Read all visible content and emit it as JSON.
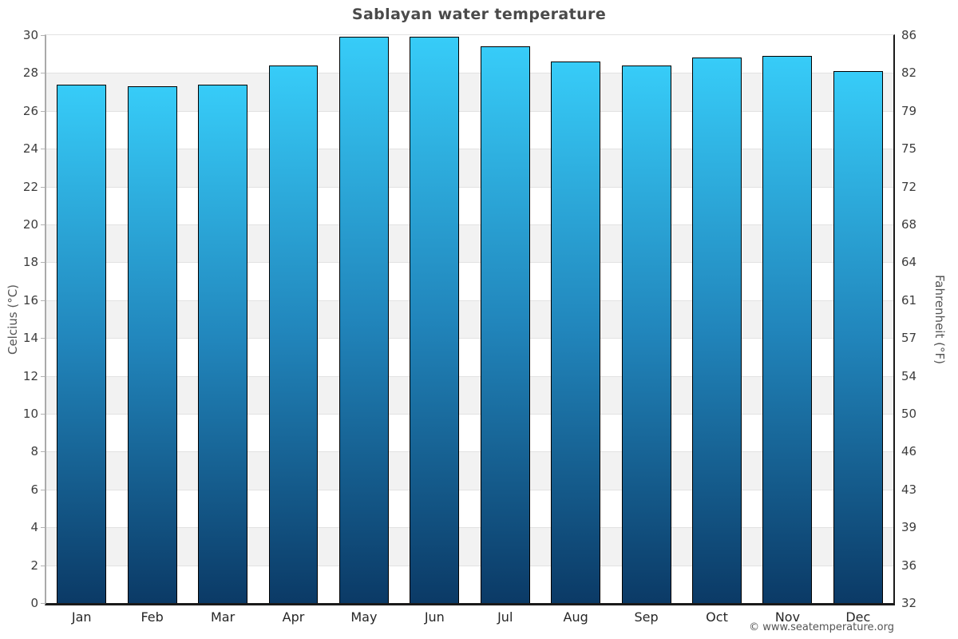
{
  "title": "Sablayan water temperature",
  "copyright": "© www.seatemperature.org",
  "chart_data": {
    "type": "bar",
    "title": "Sablayan water temperature",
    "categories": [
      "Jan",
      "Feb",
      "Mar",
      "Apr",
      "May",
      "Jun",
      "Jul",
      "Aug",
      "Sep",
      "Oct",
      "Nov",
      "Dec"
    ],
    "values": [
      27.4,
      27.3,
      27.4,
      28.4,
      29.9,
      29.9,
      29.4,
      28.6,
      28.4,
      28.8,
      28.9,
      28.1
    ],
    "unit": "°C",
    "ylabel_left": "Celcius (°C)",
    "ylabel_right": "Fahrenheit (°F)",
    "xlabel": "",
    "ylim": [
      0,
      30
    ],
    "ytick_step": 2,
    "yticks_celsius": [
      0,
      2,
      4,
      6,
      8,
      10,
      12,
      14,
      16,
      18,
      20,
      22,
      24,
      26,
      28,
      30
    ],
    "yticks_fahrenheit_labels": [
      "32",
      "36",
      "39",
      "43",
      "46",
      "50",
      "54",
      "57",
      "61",
      "64",
      "68",
      "72",
      "75",
      "79",
      "82",
      "86"
    ],
    "legend": "none",
    "grid": "horizontal alternating bands",
    "colors": {
      "bar_gradient_top": "#37ccf8",
      "bar_gradient_mid": "#2185bb",
      "bar_gradient_bottom": "#0b3a66",
      "bar_border": "#000000",
      "band_white": "#ffffff",
      "band_gray": "#f2f2f2",
      "gridline": "#e2e2e2",
      "left_spine": "#aaaaaa",
      "right_spine": "#1a1a1a",
      "bottom_axis": "#1a1a1a",
      "title_text": "#4a4a4a",
      "tick_text": "#3d3d3d",
      "month_text": "#262626",
      "axis_title_text": "#555555",
      "copyright_text": "#555555"
    }
  }
}
